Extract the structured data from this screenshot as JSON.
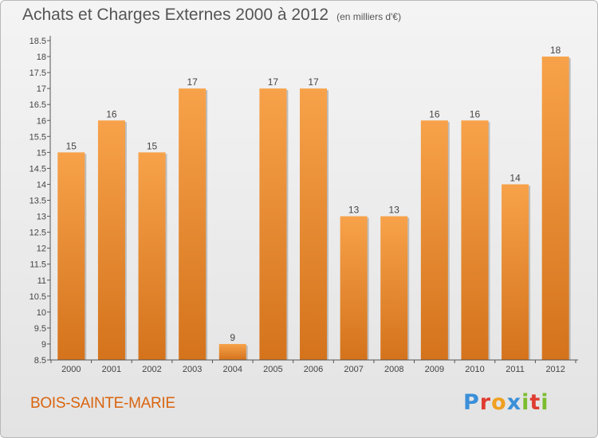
{
  "header": {
    "title": "Achats et Charges Externes 2000 à 2012",
    "unit": "(en milliers d'€)"
  },
  "footer": {
    "commune": "BOIS-SAINTE-MARIE",
    "logo": [
      "P",
      "r",
      "o",
      "x",
      "i",
      "t",
      "i"
    ]
  },
  "colors": {
    "bar_top": "#f7a24a",
    "bar_bottom": "#d4731c",
    "accent": "#d9640e"
  },
  "chart_data": {
    "type": "bar",
    "categories": [
      "2000",
      "2001",
      "2002",
      "2003",
      "2004",
      "2005",
      "2006",
      "2007",
      "2008",
      "2009",
      "2010",
      "2011",
      "2012"
    ],
    "values": [
      15,
      16,
      15,
      17,
      9,
      17,
      17,
      13,
      13,
      16,
      16,
      14,
      18
    ],
    "value_labels": [
      "15",
      "16",
      "15",
      "17",
      "9",
      "17",
      "17",
      "13",
      "13",
      "16",
      "16",
      "14",
      "18"
    ],
    "title": "Achats et Charges Externes 2000 à 2012",
    "xlabel": "",
    "ylabel": "",
    "ylim": [
      8.5,
      18.5
    ],
    "y_ticks": [
      "8.5",
      "9",
      "9.5",
      "10",
      "10.5",
      "11",
      "11.5",
      "12",
      "12.5",
      "13",
      "13.5",
      "14",
      "14.5",
      "15",
      "15.5",
      "16",
      "16.5",
      "17",
      "17.5",
      "18",
      "18.5"
    ],
    "grid": false,
    "legend": "none"
  }
}
